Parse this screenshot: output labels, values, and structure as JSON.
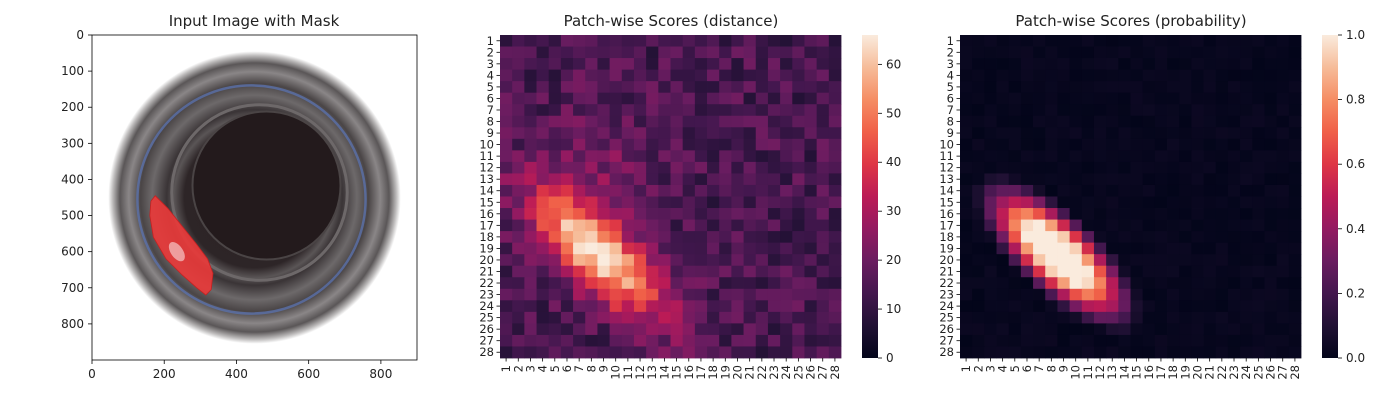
{
  "chart_data": [
    {
      "type": "image",
      "title": "Input Image with Mask",
      "xlim": [
        0,
        900
      ],
      "ylim": [
        900,
        0
      ],
      "xticks": [
        0,
        200,
        400,
        600,
        800
      ],
      "yticks": [
        0,
        100,
        200,
        300,
        400,
        500,
        600,
        700,
        800
      ],
      "image": {
        "content": "top-down photo of a dark glass jar on white background",
        "jar_center": [
          450,
          450
        ],
        "jar_outer_radius": 405,
        "jar_inner_opening_radius": 205
      },
      "mask": {
        "color": "#e83a3a",
        "region": "elongated leaf-shaped defect on left wall of jar",
        "outline": [
          [
            175,
            445
          ],
          [
            210,
            480
          ],
          [
            250,
            530
          ],
          [
            290,
            580
          ],
          [
            320,
            620
          ],
          [
            335,
            660
          ],
          [
            330,
            705
          ],
          [
            315,
            720
          ],
          [
            290,
            700
          ],
          [
            250,
            665
          ],
          [
            205,
            620
          ],
          [
            170,
            560
          ],
          [
            160,
            500
          ],
          [
            163,
            460
          ]
        ]
      }
    },
    {
      "type": "heatmap",
      "title": "Patch-wise Scores (distance)",
      "rows": 28,
      "cols": 28,
      "xticklabels": [
        "1",
        "2",
        "3",
        "4",
        "5",
        "6",
        "7",
        "8",
        "9",
        "10",
        "11",
        "12",
        "13",
        "14",
        "15",
        "16",
        "17",
        "18",
        "19",
        "20",
        "21",
        "22",
        "23",
        "24",
        "25",
        "26",
        "27",
        "28"
      ],
      "yticklabels": [
        "1",
        "2",
        "3",
        "4",
        "5",
        "6",
        "7",
        "8",
        "9",
        "10",
        "11",
        "12",
        "13",
        "14",
        "15",
        "16",
        "17",
        "18",
        "19",
        "20",
        "21",
        "22",
        "23",
        "24",
        "25",
        "26",
        "27",
        "28"
      ],
      "vmin": 0,
      "vmax": 66,
      "colorbar_ticks": [
        0,
        10,
        20,
        30,
        40,
        50,
        60
      ],
      "colormap": "rocket",
      "background_level": 14,
      "hotspot": {
        "center_row": 19.5,
        "center_col": 8.5,
        "peak": 65,
        "elongation": "diagonal from upper-left (row 13, col 5) to lower-right (row 24, col 12)"
      }
    },
    {
      "type": "heatmap",
      "title": "Patch-wise Scores (probability)",
      "rows": 28,
      "cols": 28,
      "xticklabels": [
        "1",
        "2",
        "3",
        "4",
        "5",
        "6",
        "7",
        "8",
        "9",
        "10",
        "11",
        "12",
        "13",
        "14",
        "15",
        "16",
        "17",
        "18",
        "19",
        "20",
        "21",
        "22",
        "23",
        "24",
        "25",
        "26",
        "27",
        "28"
      ],
      "yticklabels": [
        "1",
        "2",
        "3",
        "4",
        "5",
        "6",
        "7",
        "8",
        "9",
        "10",
        "11",
        "12",
        "13",
        "14",
        "15",
        "16",
        "17",
        "18",
        "19",
        "20",
        "21",
        "22",
        "23",
        "24",
        "25",
        "26",
        "27",
        "28"
      ],
      "vmin": 0,
      "vmax": 1.0,
      "colorbar_ticks": [
        "0.0",
        "0.2",
        "0.4",
        "0.6",
        "0.8",
        "1.0"
      ],
      "colormap": "rocket",
      "background_level": 0.0,
      "hotspot": {
        "center_row": 19.5,
        "center_col": 8.5,
        "peak": 1.0,
        "elongation": "diagonal from upper-left (row 13, col 5) to lower-right (row 24, col 12)"
      }
    }
  ]
}
